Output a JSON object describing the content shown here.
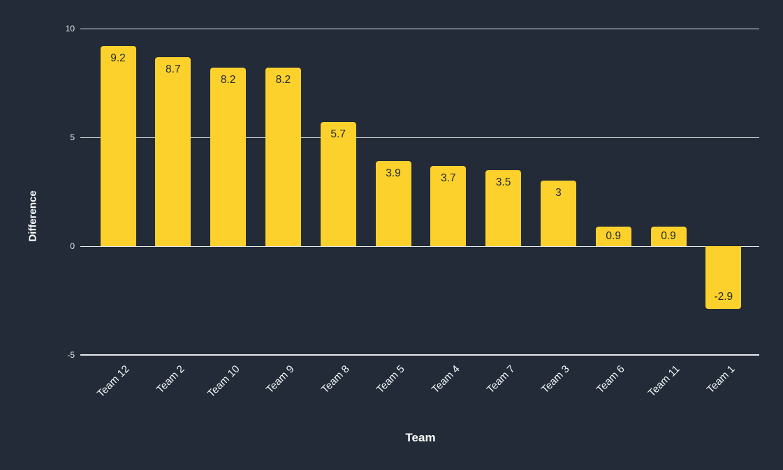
{
  "chart_data": {
    "type": "bar",
    "title": "",
    "xlabel": "Team",
    "ylabel": "Difference",
    "categories": [
      "Team 12",
      "Team 2",
      "Team 10",
      "Team 9",
      "Team 8",
      "Team 5",
      "Team 4",
      "Team 7",
      "Team 3",
      "Team 6",
      "Team 11",
      "Team 1"
    ],
    "values": [
      9.2,
      8.7,
      8.2,
      8.2,
      5.7,
      3.9,
      3.7,
      3.5,
      3,
      0.9,
      0.9,
      -2.9
    ],
    "value_labels": [
      "9.2",
      "8.7",
      "8.2",
      "8.2",
      "5.7",
      "3.9",
      "3.7",
      "3.5",
      "3",
      "0.9",
      "0.9",
      "-2.9"
    ],
    "ylim": [
      -5,
      10
    ],
    "yticks": [
      {
        "label": "10",
        "value": 10
      },
      {
        "label": "5",
        "value": 5
      },
      {
        "label": "0",
        "value": 0
      },
      {
        "label": "-5",
        "value": -5
      }
    ],
    "grid": true,
    "legend": "none",
    "colors": {
      "background": "#222B37",
      "bar": "#FCD12B",
      "bar_label_text": "#1E2733",
      "gridline": "#E8EAED",
      "tick_text": "#E8EAED",
      "category_text": "#F4F6F8",
      "axis_title_text": "#FFFFFF"
    }
  }
}
